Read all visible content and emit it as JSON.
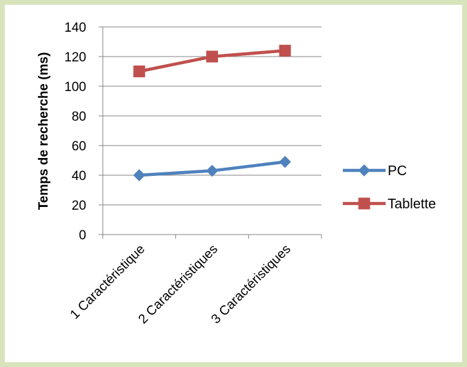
{
  "chart_data": {
    "type": "line",
    "categories": [
      "1 Caractéristique",
      "2 Caractéristiques",
      "3 Caractéristiques"
    ],
    "series": [
      {
        "name": "PC",
        "values": [
          40,
          43,
          49
        ],
        "color": "#4f81bd",
        "marker": "diamond"
      },
      {
        "name": "Tablette",
        "values": [
          110,
          120,
          124
        ],
        "color": "#c0504d",
        "marker": "square"
      }
    ],
    "title": "",
    "xlabel": "",
    "ylabel": "Temps de recherche (ms)",
    "ylim": [
      0,
      140
    ],
    "yticks": [
      0,
      20,
      40,
      60,
      80,
      100,
      120,
      140
    ],
    "grid": "horizontal",
    "legend_position": "right"
  }
}
